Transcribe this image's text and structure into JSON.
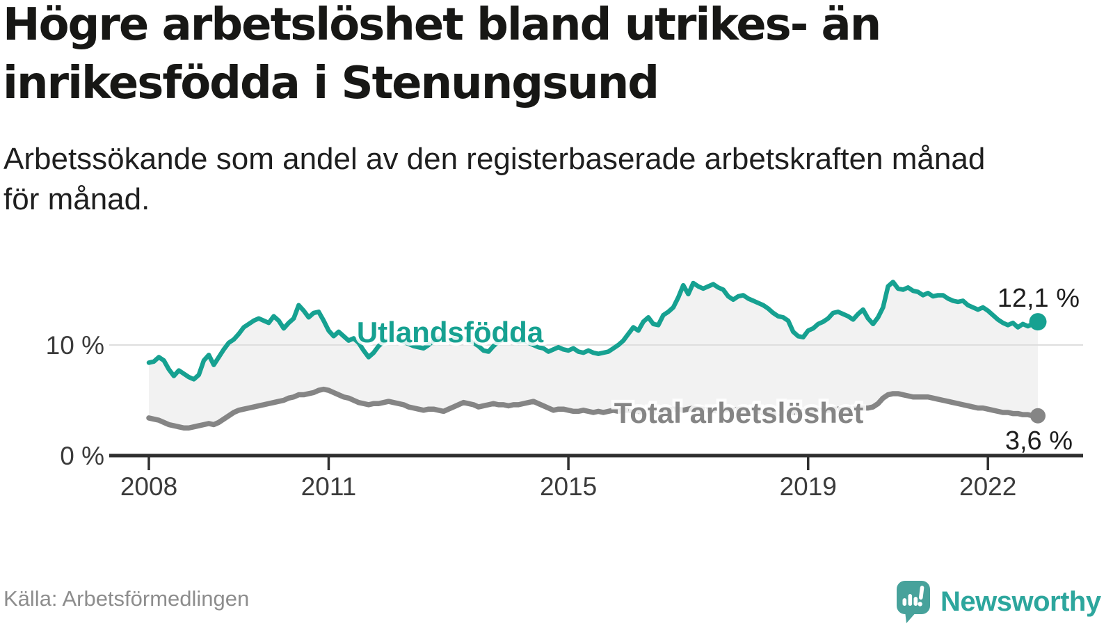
{
  "header": {
    "title_line1": "Högre arbetslöshet bland utrikes- än",
    "title_line2": "inrikesfödda i Stenungsund",
    "subtitle_line1": "Arbetssökande som andel av den registerbaserade arbetskraften månad",
    "subtitle_line2": "för månad."
  },
  "footer": {
    "source": "Källa: Arbetsförmedlingen",
    "logo_text": "Newsworthy",
    "logo_icon_color": "#47a29b",
    "logo_text_color": "#2da69d"
  },
  "chart_data": {
    "type": "line",
    "title": "Högre arbetslöshet bland utrikes- än inrikesfödda i Stenungsund",
    "subtitle": "Arbetssökande som andel av den registerbaserade arbetskraften månad för månad.",
    "unit": "%",
    "frequency": "monthly",
    "x_start": "2008-01",
    "x_end": "2022-11",
    "ylim": [
      0,
      16.5
    ],
    "grid": "single horizontal gridline at 10 %",
    "legend_position": "inline labels next to lines",
    "area_between_color": "#f2f2f2",
    "grid_color": "#dedede",
    "axis_color": "#2f2f2f",
    "tick_label_color": "#3b3b3b",
    "value_label_color": "#1d1d1d",
    "x_ticks": [
      {
        "month_index": 0,
        "label": "2008"
      },
      {
        "month_index": 36,
        "label": "2011"
      },
      {
        "month_index": 84,
        "label": "2015"
      },
      {
        "month_index": 132,
        "label": "2019"
      },
      {
        "month_index": 168,
        "label": "2022"
      }
    ],
    "y_ticks": [
      {
        "value": 10,
        "label": "10 %"
      },
      {
        "value": 0,
        "label": "0 %"
      }
    ],
    "series": [
      {
        "name": "Utlandsfödda",
        "color": "#16a191",
        "end_value": 12.1,
        "end_label": "12,1 %",
        "values": [
          8.4,
          8.5,
          8.9,
          8.6,
          7.8,
          7.2,
          7.7,
          7.4,
          7.1,
          6.9,
          7.3,
          8.6,
          9.1,
          8.2,
          8.9,
          9.6,
          10.2,
          10.5,
          11.0,
          11.6,
          11.9,
          12.2,
          12.4,
          12.2,
          12.0,
          12.6,
          12.2,
          11.5,
          12.0,
          12.4,
          13.6,
          13.1,
          12.5,
          12.9,
          13.0,
          12.2,
          11.3,
          10.8,
          11.2,
          10.8,
          10.4,
          10.6,
          10.2,
          9.5,
          8.9,
          9.3,
          9.9,
          10.3,
          10.5,
          10.7,
          10.5,
          10.3,
          10.1,
          9.9,
          9.8,
          9.7,
          10.0,
          10.4,
          10.6,
          10.5,
          10.4,
          10.6,
          10.4,
          10.6,
          10.4,
          10.2,
          9.9,
          9.5,
          9.4,
          9.9,
          10.3,
          10.5,
          10.6,
          10.5,
          10.3,
          10.4,
          10.2,
          10.0,
          9.8,
          9.7,
          9.4,
          9.6,
          9.8,
          9.6,
          9.5,
          9.7,
          9.4,
          9.3,
          9.5,
          9.3,
          9.2,
          9.3,
          9.4,
          9.7,
          10.0,
          10.4,
          11.0,
          11.6,
          11.3,
          12.1,
          12.5,
          11.9,
          11.8,
          12.7,
          13.0,
          13.4,
          14.3,
          15.4,
          14.6,
          15.6,
          15.3,
          15.1,
          15.3,
          15.5,
          15.2,
          15.0,
          14.4,
          14.1,
          14.4,
          14.5,
          14.2,
          14.0,
          13.8,
          13.6,
          13.3,
          12.9,
          12.6,
          12.5,
          12.2,
          11.2,
          10.8,
          10.7,
          11.3,
          11.5,
          11.9,
          12.1,
          12.4,
          12.9,
          13.0,
          12.8,
          12.6,
          12.3,
          12.8,
          13.2,
          12.4,
          11.9,
          12.5,
          13.4,
          15.3,
          15.7,
          15.1,
          15.0,
          15.2,
          14.9,
          14.8,
          14.5,
          14.7,
          14.4,
          14.5,
          14.5,
          14.2,
          14.0,
          13.9,
          14.0,
          13.6,
          13.4,
          13.2,
          13.4,
          13.1,
          12.7,
          12.3,
          12.0,
          11.8,
          12.0,
          11.6,
          11.9,
          11.7,
          11.9,
          12.1
        ]
      },
      {
        "name": "Total arbetslöshet",
        "color": "#858585",
        "end_value": 3.6,
        "end_label": "3,6 %",
        "values": [
          3.4,
          3.3,
          3.2,
          3.0,
          2.8,
          2.7,
          2.6,
          2.5,
          2.5,
          2.6,
          2.7,
          2.8,
          2.9,
          2.8,
          3.0,
          3.3,
          3.6,
          3.9,
          4.1,
          4.2,
          4.3,
          4.4,
          4.5,
          4.6,
          4.7,
          4.8,
          4.9,
          5.0,
          5.2,
          5.3,
          5.5,
          5.5,
          5.6,
          5.7,
          5.9,
          6.0,
          5.9,
          5.7,
          5.5,
          5.3,
          5.2,
          5.0,
          4.8,
          4.7,
          4.6,
          4.7,
          4.7,
          4.8,
          4.9,
          4.8,
          4.7,
          4.6,
          4.4,
          4.3,
          4.2,
          4.1,
          4.2,
          4.2,
          4.1,
          4.0,
          4.2,
          4.4,
          4.6,
          4.8,
          4.7,
          4.6,
          4.4,
          4.5,
          4.6,
          4.7,
          4.6,
          4.6,
          4.5,
          4.6,
          4.6,
          4.7,
          4.8,
          4.9,
          4.7,
          4.5,
          4.3,
          4.1,
          4.2,
          4.2,
          4.1,
          4.0,
          4.0,
          4.1,
          4.0,
          3.9,
          4.0,
          3.9,
          4.0,
          4.1,
          4.0,
          4.1,
          4.1,
          4.0,
          4.0,
          3.9,
          4.0,
          3.9,
          4.0,
          4.1,
          4.1,
          4.2,
          4.2,
          4.1,
          4.2,
          4.3,
          4.2,
          4.2,
          4.1,
          4.1,
          4.0,
          4.1,
          4.2,
          4.1,
          4.2,
          4.2,
          4.1,
          4.1,
          4.0,
          3.9,
          3.9,
          3.8,
          3.8,
          3.9,
          3.8,
          3.9,
          3.9,
          4.0,
          4.0,
          4.1,
          4.1,
          4.0,
          4.1,
          4.2,
          4.2,
          4.1,
          4.2,
          4.2,
          4.3,
          4.3,
          4.3,
          4.4,
          4.7,
          5.2,
          5.5,
          5.6,
          5.6,
          5.5,
          5.4,
          5.3,
          5.3,
          5.3,
          5.3,
          5.2,
          5.1,
          5.0,
          4.9,
          4.8,
          4.7,
          4.6,
          4.5,
          4.4,
          4.3,
          4.3,
          4.2,
          4.1,
          4.0,
          3.9,
          3.9,
          3.8,
          3.8,
          3.7,
          3.7,
          3.6,
          3.6
        ]
      }
    ]
  }
}
